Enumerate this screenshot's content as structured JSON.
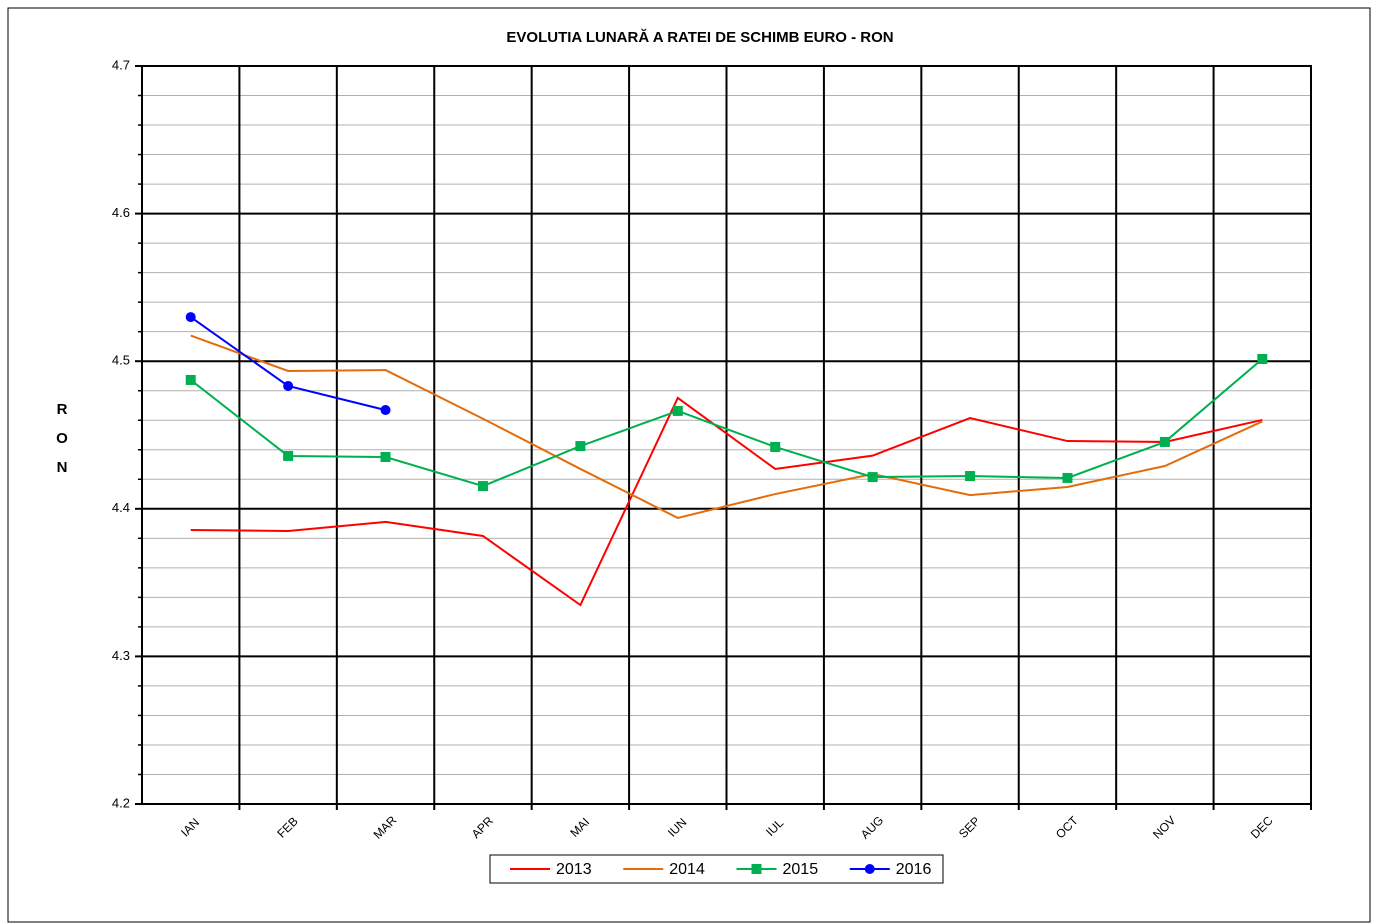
{
  "chart_data": {
    "type": "line",
    "title": "EVOLUTIA LUNARĂ A RATEI DE SCHIMB EURO - RON",
    "y_label": "R O N",
    "categories": [
      "IAN",
      "FEB",
      "MAR",
      "APR",
      "MAI",
      "IUN",
      "IUL",
      "AUG",
      "SEP",
      "OCT",
      "NOV",
      "DEC"
    ],
    "series": [
      {
        "name": "2013",
        "color": "#ff0000",
        "marker": "none",
        "values": [
          4.3856,
          4.385,
          4.3911,
          4.3816,
          4.3348,
          4.4751,
          4.427,
          4.436,
          4.4615,
          4.4459,
          4.4453,
          4.4602
        ]
      },
      {
        "name": "2014",
        "color": "#e46c0a",
        "marker": "none",
        "values": [
          4.5174,
          4.4934,
          4.494,
          4.461,
          4.427,
          4.3938,
          4.41,
          4.4236,
          4.4093,
          4.4148,
          4.429,
          4.4592
        ]
      },
      {
        "name": "2015",
        "color": "#00b050",
        "marker": "square",
        "values": [
          4.4873,
          4.4358,
          4.4351,
          4.4154,
          4.4425,
          4.4663,
          4.4419,
          4.4215,
          4.4222,
          4.4209,
          4.4453,
          4.5015
        ]
      },
      {
        "name": "2016",
        "color": "#0000ff",
        "marker": "circle",
        "values": [
          4.5299,
          4.4832,
          4.4669,
          null,
          null,
          null,
          null,
          null,
          null,
          null,
          null,
          null
        ]
      }
    ],
    "ylim": [
      4.2,
      4.7
    ],
    "yticks": [
      4.2,
      4.3,
      4.4,
      4.5,
      4.6,
      4.7
    ],
    "minor_yticks": [
      4.22,
      4.24,
      4.26,
      4.28,
      4.32,
      4.34,
      4.36,
      4.38,
      4.42,
      4.44,
      4.46,
      4.48,
      4.52,
      4.54,
      4.56,
      4.58,
      4.62,
      4.64,
      4.66,
      4.68
    ],
    "grid": true,
    "legend": "bottom"
  }
}
